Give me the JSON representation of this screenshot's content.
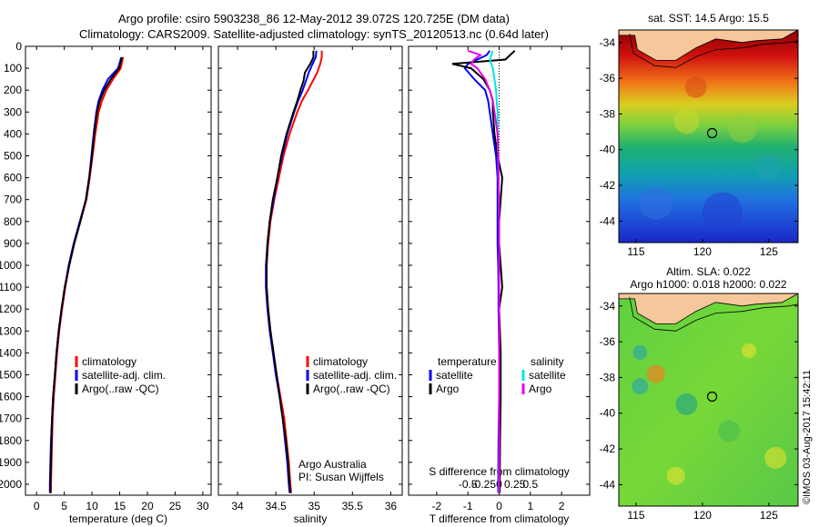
{
  "header": {
    "title_line1": "Argo profile: csiro 5903238_86 12-May-2012 39.072S 120.725E (DM data)",
    "title_line2": "Climatology: CARS2009. Satellite-adjusted climatology: synTS_20120513.nc (0.64d later)"
  },
  "colors": {
    "climatology": "#ff0000",
    "satellite": "#0000ff",
    "argo": "#000000",
    "sal_satellite": "#00e5e5",
    "sal_argo": "#e600e6",
    "land": "#f5c79a"
  },
  "depth_ticks": [
    0,
    100,
    200,
    300,
    400,
    500,
    600,
    700,
    800,
    900,
    1000,
    1100,
    1200,
    1300,
    1400,
    1500,
    1600,
    1700,
    1800,
    1900,
    2000
  ],
  "chart_data": [
    {
      "type": "line",
      "xlabel": "temperature (deg C)",
      "xlim": [
        -2,
        31.5
      ],
      "ylim": [
        2050,
        0
      ],
      "xticks": [
        0,
        5,
        10,
        15,
        20,
        25,
        30
      ],
      "legend": {
        "placement": "center-left",
        "entries": [
          "climatology",
          "satellite-adj. clim.",
          "Argo(..raw -QC)"
        ]
      },
      "depth": [
        50,
        100,
        150,
        200,
        250,
        300,
        400,
        500,
        600,
        700,
        800,
        900,
        1000,
        1100,
        1200,
        1300,
        1400,
        1500,
        1600,
        1700,
        1800,
        1900,
        2000,
        2040
      ],
      "series": [
        {
          "name": "climatology",
          "values": [
            15.6,
            15.2,
            13.8,
            12.6,
            11.8,
            11.2,
            10.6,
            10.1,
            9.6,
            9.0,
            7.9,
            6.8,
            5.9,
            5.2,
            4.6,
            4.1,
            3.7,
            3.4,
            3.1,
            2.9,
            2.8,
            2.7,
            2.6,
            2.6
          ]
        },
        {
          "name": "satellite-adj. clim.",
          "values": [
            15.3,
            14.7,
            12.9,
            11.9,
            11.2,
            10.8,
            10.3,
            9.9,
            9.5,
            8.9,
            7.8,
            6.7,
            5.8,
            5.1,
            4.5,
            4.0,
            3.6,
            3.3,
            3.0,
            2.8,
            2.6,
            2.5,
            2.4,
            2.4
          ]
        },
        {
          "name": "Argo(..raw -QC)",
          "values": [
            15.4,
            14.9,
            13.4,
            12.2,
            11.4,
            10.9,
            10.4,
            10.0,
            9.5,
            8.9,
            7.9,
            6.8,
            5.9,
            5.1,
            4.5,
            4.0,
            3.6,
            3.3,
            3.0,
            2.8,
            2.7,
            2.6,
            2.5,
            2.5
          ]
        }
      ]
    },
    {
      "type": "line",
      "xlabel": "salinity",
      "xlim": [
        33.75,
        36.15
      ],
      "ylim": [
        2050,
        0
      ],
      "xticks": [
        34,
        34.5,
        35,
        35.5,
        36
      ],
      "xticklabels": [
        "34",
        "34.5",
        "35",
        "35.5",
        "36"
      ],
      "legend": {
        "placement": "center-left",
        "entries": [
          "climatology",
          "satellite-adj. clim.",
          "Argo(..raw -QC)"
        ]
      },
      "annotation": [
        "Argo Australia",
        "PI: Susan Wijffels"
      ],
      "depth": [
        20,
        50,
        80,
        120,
        160,
        200,
        250,
        300,
        400,
        500,
        600,
        700,
        800,
        900,
        1000,
        1100,
        1200,
        1300,
        1400,
        1500,
        1600,
        1700,
        1800,
        1900,
        2000,
        2040
      ],
      "series": [
        {
          "name": "climatology",
          "values": [
            35.1,
            35.1,
            35.08,
            35.04,
            34.98,
            34.92,
            34.84,
            34.78,
            34.68,
            34.6,
            34.54,
            34.48,
            34.43,
            34.4,
            34.38,
            34.38,
            34.4,
            34.43,
            34.47,
            34.51,
            34.56,
            34.61,
            34.64,
            34.67,
            34.69,
            34.7
          ]
        },
        {
          "name": "satellite-adj. clim.",
          "values": [
            35.03,
            35.02,
            34.98,
            34.93,
            34.89,
            34.85,
            34.79,
            34.74,
            34.65,
            34.58,
            34.52,
            34.47,
            34.42,
            34.39,
            34.37,
            34.37,
            34.39,
            34.42,
            34.46,
            34.5,
            34.55,
            34.59,
            34.62,
            34.65,
            34.67,
            34.68
          ]
        },
        {
          "name": "Argo(..raw -QC)",
          "values": [
            34.99,
            34.99,
            34.95,
            34.88,
            34.86,
            34.82,
            34.78,
            34.73,
            34.64,
            34.57,
            34.52,
            34.46,
            34.42,
            34.39,
            34.38,
            34.38,
            34.4,
            34.43,
            34.47,
            34.51,
            34.55,
            34.59,
            34.63,
            34.66,
            34.68,
            34.69
          ]
        }
      ]
    },
    {
      "type": "line",
      "xlabel": "T difference from climatology",
      "xlabel_top": "S difference from climatology",
      "xlim": [
        -2.9,
        2.9
      ],
      "ylim": [
        2050,
        0
      ],
      "xticks": [
        -2,
        -1,
        0,
        1,
        2
      ],
      "xticks_top": [
        -0.5,
        -0.25,
        0,
        0.25,
        0.5
      ],
      "legend": {
        "placement": "center",
        "headers": [
          "temperature",
          "salinity"
        ],
        "entries": [
          "satellite",
          "Argo",
          "satellite",
          "Argo"
        ]
      },
      "depth": [
        20,
        40,
        60,
        80,
        100,
        150,
        200,
        250,
        300,
        400,
        500,
        600,
        700,
        800,
        900,
        1000,
        1100,
        1200,
        1400,
        1600,
        1800,
        2000,
        2040
      ],
      "series": [
        {
          "name": "temperature satellite",
          "values": [
            -0.3,
            -0.4,
            -0.7,
            -1.0,
            -1.1,
            -0.8,
            -0.45,
            -0.35,
            -0.3,
            -0.2,
            -0.1,
            -0.05,
            -0.05,
            -0.05,
            -0.05,
            -0.03,
            -0.02,
            -0.02,
            0,
            0,
            -0.02,
            -0.03,
            -0.03
          ]
        },
        {
          "name": "temperature Argo",
          "values": [
            0.5,
            0.35,
            0.2,
            -1.5,
            -0.9,
            -0.5,
            -0.3,
            -0.2,
            -0.2,
            -0.15,
            -0.05,
            0.1,
            0.05,
            0.0,
            0.0,
            0.05,
            0.1,
            0.0,
            0.05,
            0.05,
            0.03,
            0.02,
            0.02
          ]
        },
        {
          "name": "salinity satellite",
          "values": [
            -0.2,
            -0.25,
            -0.3,
            -0.25,
            -0.2,
            -0.15,
            -0.1,
            -0.08,
            -0.05,
            -0.05,
            -0.03,
            -0.02,
            -0.01,
            0,
            0,
            0,
            0,
            0,
            0,
            0,
            0,
            -0.01,
            -0.01
          ]
        },
        {
          "name": "salinity Argo",
          "values": [
            -1.0,
            -0.6,
            -0.8,
            -0.9,
            -0.7,
            -0.45,
            -0.3,
            -0.2,
            -0.15,
            -0.05,
            -0.03,
            -0.02,
            -0.01,
            0,
            0,
            0,
            0,
            0,
            0,
            0,
            0,
            0,
            0
          ]
        }
      ]
    },
    {
      "type": "heatmap",
      "title": "sat. SST: 14.5  Argo: 15.5",
      "xticks": [
        115,
        120,
        125
      ],
      "yticks": [
        -34,
        -36,
        -38,
        -40,
        -42,
        -44
      ],
      "xlim": [
        113.7,
        127.2
      ],
      "ylim": [
        -45.2,
        -33.3
      ],
      "marker": {
        "lon": 120.725,
        "lat": -39.072
      }
    },
    {
      "type": "heatmap",
      "title_line1": "Altim. SLA: 0.022",
      "title_line2": "Argo h1000: 0.018  h2000: 0.022",
      "xticks": [
        115,
        120,
        125
      ],
      "yticks": [
        -34,
        -36,
        -38,
        -40,
        -42,
        -44
      ],
      "xlim": [
        113.7,
        127.2
      ],
      "ylim": [
        -45.2,
        -33.3
      ],
      "marker": {
        "lon": 120.725,
        "lat": -39.072
      }
    }
  ],
  "footer": {
    "credit": "©IMOS 03-Aug-2017 15:42:11"
  }
}
